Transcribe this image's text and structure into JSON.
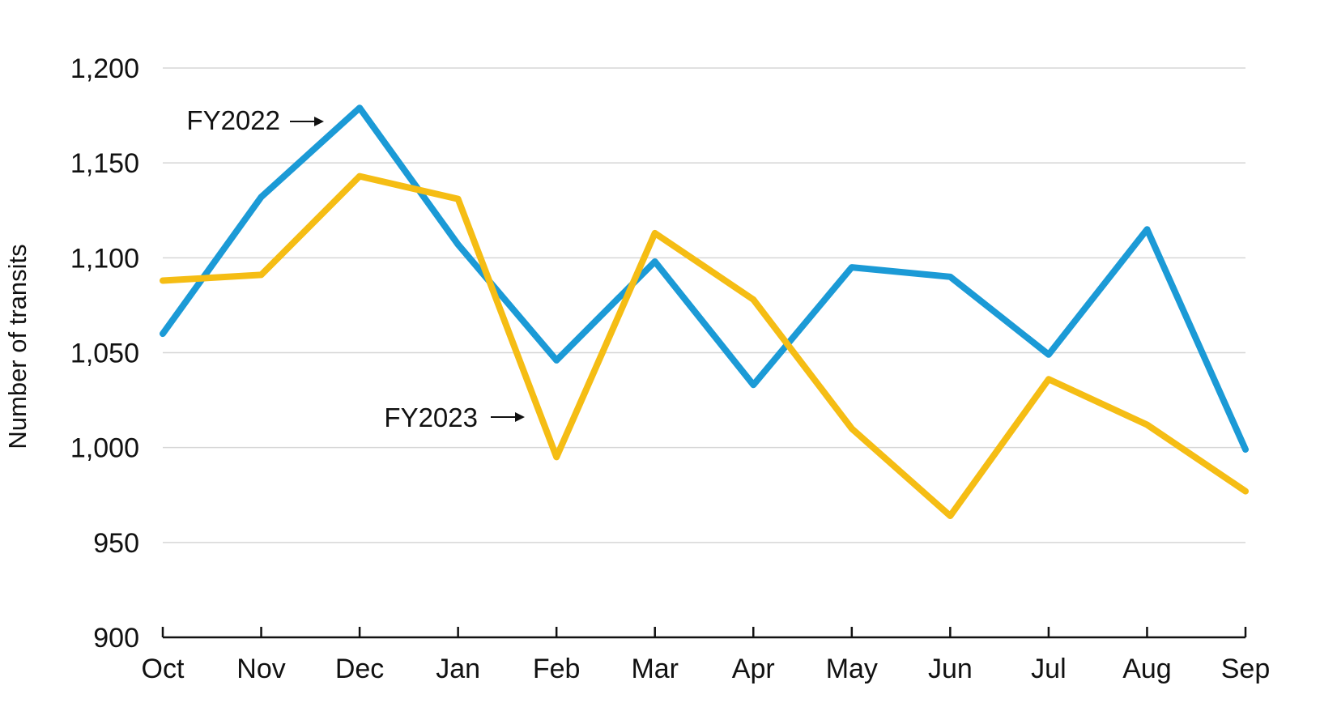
{
  "chart_data": {
    "type": "line",
    "title": "",
    "xlabel": "",
    "ylabel": "Number of transits",
    "ylim": [
      900,
      1200
    ],
    "yticks": [
      900,
      950,
      1000,
      1050,
      1100,
      1150,
      1200
    ],
    "ytick_labels": [
      "900",
      "950",
      "1,000",
      "1,050",
      "1,100",
      "1,150",
      "1,200"
    ],
    "categories": [
      "Oct",
      "Nov",
      "Dec",
      "Jan",
      "Feb",
      "Mar",
      "Apr",
      "May",
      "Jun",
      "Jul",
      "Aug",
      "Sep"
    ],
    "grid": true,
    "legend": "none",
    "series": [
      {
        "name": "FY2022",
        "color": "#1b9ad6",
        "values": [
          1060,
          1132,
          1179,
          1107,
          1046,
          1098,
          1033,
          1095,
          1090,
          1049,
          1115,
          999
        ]
      },
      {
        "name": "FY2023",
        "color": "#f5bd14",
        "values": [
          1088,
          1091,
          1143,
          1131,
          995,
          1113,
          1078,
          1010,
          964,
          1036,
          1012,
          977
        ]
      }
    ],
    "annotations": [
      {
        "text": "FY2022",
        "series": "FY2022"
      },
      {
        "text": "FY2023",
        "series": "FY2023"
      }
    ]
  }
}
